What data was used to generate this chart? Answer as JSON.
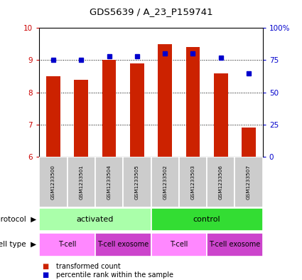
{
  "title": "GDS5639 / A_23_P159741",
  "samples": [
    "GSM1233500",
    "GSM1233501",
    "GSM1233504",
    "GSM1233505",
    "GSM1233502",
    "GSM1233503",
    "GSM1233506",
    "GSM1233507"
  ],
  "transformed_counts": [
    8.5,
    8.4,
    9.0,
    8.9,
    9.5,
    9.4,
    8.6,
    6.9
  ],
  "percentile_ranks": [
    75,
    75,
    78,
    78,
    80,
    80,
    77,
    65
  ],
  "ylim_left": [
    6,
    10
  ],
  "ylim_right": [
    0,
    100
  ],
  "yticks_left": [
    6,
    7,
    8,
    9,
    10
  ],
  "yticks_right": [
    0,
    25,
    50,
    75,
    100
  ],
  "ytick_right_labels": [
    "0",
    "25",
    "50",
    "75",
    "100%"
  ],
  "protocol_labels": [
    {
      "text": "activated",
      "start": 0,
      "end": 4,
      "color": "#AAFFAA"
    },
    {
      "text": "control",
      "start": 4,
      "end": 8,
      "color": "#33DD33"
    }
  ],
  "cell_type_labels": [
    {
      "text": "T-cell",
      "start": 0,
      "end": 2,
      "color": "#FF88FF"
    },
    {
      "text": "T-cell exosome",
      "start": 2,
      "end": 4,
      "color": "#CC44CC"
    },
    {
      "text": "T-cell",
      "start": 4,
      "end": 6,
      "color": "#FF88FF"
    },
    {
      "text": "T-cell exosome",
      "start": 6,
      "end": 8,
      "color": "#CC44CC"
    }
  ],
  "bar_color": "#CC2200",
  "dot_color": "#0000CC",
  "left_tick_color": "#CC0000",
  "right_tick_color": "#0000CC",
  "sample_box_color": "#CCCCCC",
  "bg_color": "#FFFFFF"
}
